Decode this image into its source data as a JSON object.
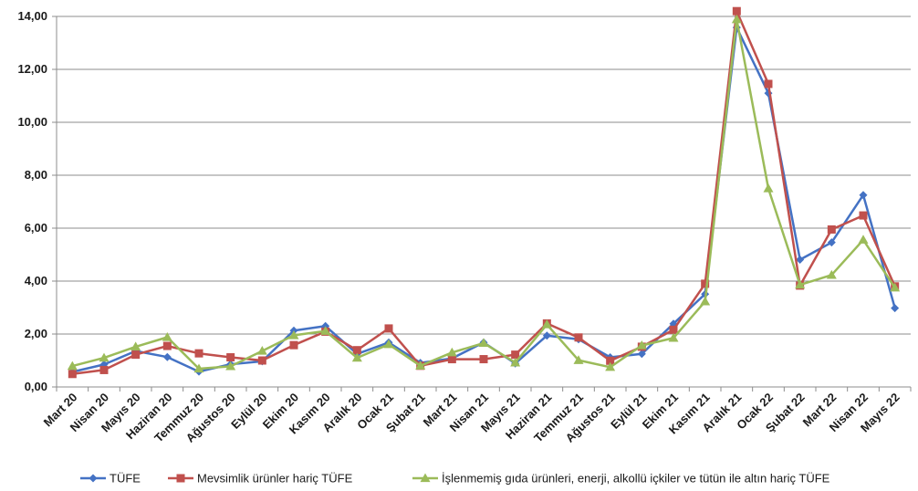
{
  "chart_data": {
    "type": "line",
    "title": "",
    "xlabel": "",
    "ylabel": "",
    "ylim": [
      0,
      14
    ],
    "yticks": [
      "0,00",
      "2,00",
      "4,00",
      "6,00",
      "8,00",
      "10,00",
      "12,00",
      "14,00"
    ],
    "grid": true,
    "legend_position": "bottom",
    "categories": [
      "Mart 20",
      "Nisan 20",
      "Mayıs 20",
      "Haziran 20",
      "Temmuz 20",
      "Ağustos 20",
      "Eylül 20",
      "Ekim 20",
      "Kasım 20",
      "Aralık 20",
      "Ocak 21",
      "Şubat 21",
      "Mart 21",
      "Nisan 21",
      "Mayıs 21",
      "Haziran 21",
      "Temmuz 21",
      "Ağustos 21",
      "Eylül 21",
      "Ekim 21",
      "Kasım 21",
      "Aralık 21",
      "Ocak 22",
      "Şubat 22",
      "Mart 22",
      "Nisan 22",
      "Mayıs 22"
    ],
    "series": [
      {
        "name": "TÜFE",
        "color": "#4472c4",
        "marker": "diamond",
        "values": [
          0.57,
          0.85,
          1.36,
          1.13,
          0.58,
          0.86,
          0.97,
          2.13,
          2.3,
          1.25,
          1.68,
          0.91,
          1.08,
          1.68,
          0.89,
          1.94,
          1.8,
          1.12,
          1.25,
          2.39,
          3.51,
          13.58,
          11.1,
          4.81,
          5.46,
          7.25,
          2.98
        ]
      },
      {
        "name": "Mevsimlik ürünler hariç TÜFE",
        "color": "#c0504d",
        "marker": "square",
        "values": [
          0.49,
          0.64,
          1.22,
          1.55,
          1.27,
          1.12,
          1.0,
          1.58,
          2.09,
          1.39,
          2.21,
          0.8,
          1.05,
          1.05,
          1.22,
          2.4,
          1.87,
          0.99,
          1.52,
          2.16,
          3.9,
          14.2,
          11.45,
          3.83,
          5.95,
          6.48,
          3.8
        ]
      },
      {
        "name": "İşlenmemiş gıda ürünleri, enerji, alkollü içkiler ve tütün ile altın hariç TÜFE",
        "color": "#9bbb59",
        "marker": "triangle",
        "values": [
          0.79,
          1.1,
          1.52,
          1.88,
          0.69,
          0.78,
          1.36,
          1.95,
          2.11,
          1.1,
          1.61,
          0.8,
          1.3,
          1.66,
          0.92,
          2.36,
          1.01,
          0.75,
          1.57,
          1.85,
          3.23,
          13.89,
          7.5,
          3.86,
          4.23,
          5.56,
          3.75
        ]
      }
    ]
  }
}
